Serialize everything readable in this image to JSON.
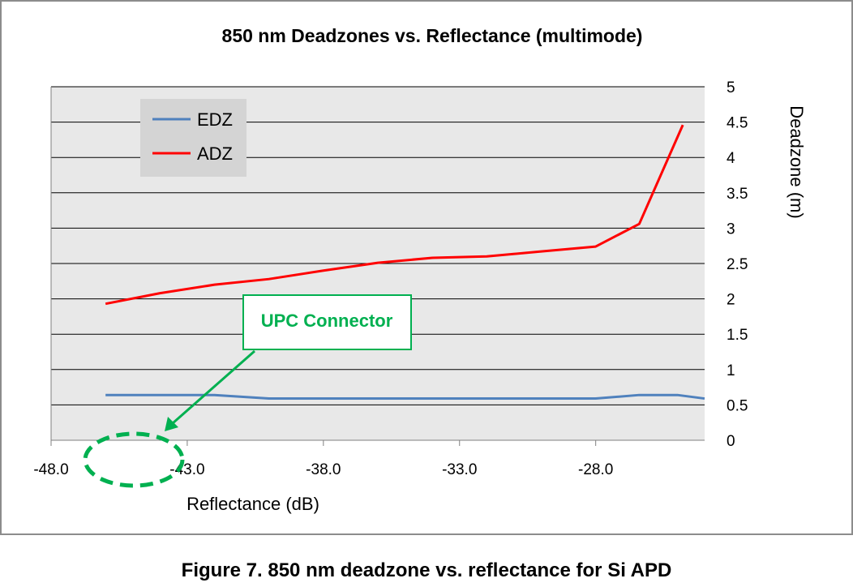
{
  "chart_data": {
    "type": "line",
    "title": "850 nm Deadzones vs. Reflectance (multimode)",
    "xlabel": "Reflectance (dB)",
    "ylabel": "Deadzone (m)",
    "xlim": [
      -48.0,
      -24.0
    ],
    "ylim": [
      0,
      5
    ],
    "x_ticks": [
      "-48.0",
      "-43.0",
      "-38.0",
      "-33.0",
      "-28.0"
    ],
    "y_ticks": [
      "0",
      "0.5",
      "1",
      "1.5",
      "2",
      "2.5",
      "3",
      "3.5",
      "4",
      "4.5",
      "5"
    ],
    "y_axis_side": "right",
    "grid": "horizontal",
    "legend_position": "top-left",
    "series": [
      {
        "name": "EDZ",
        "color": "#4f81bd",
        "x": [
          -46,
          -44,
          -42,
          -40,
          -38,
          -36,
          -34,
          -32,
          -30,
          -28,
          -26.4,
          -25,
          -24
        ],
        "y": [
          0.64,
          0.64,
          0.64,
          0.59,
          0.59,
          0.59,
          0.59,
          0.59,
          0.59,
          0.59,
          0.64,
          0.64,
          0.59
        ]
      },
      {
        "name": "ADZ",
        "color": "#ff0000",
        "x": [
          -46,
          -44,
          -42,
          -40,
          -38,
          -36,
          -34,
          -32,
          -30,
          -28,
          -26.4,
          -24.8
        ],
        "y": [
          1.93,
          2.08,
          2.2,
          2.28,
          2.4,
          2.51,
          2.58,
          2.6,
          2.67,
          2.74,
          3.06,
          4.46
        ]
      }
    ],
    "annotation": {
      "text": "UPC Connector",
      "color": "#00b050"
    }
  },
  "caption": "Figure 7.  850 nm deadzone vs. reflectance for Si APD"
}
